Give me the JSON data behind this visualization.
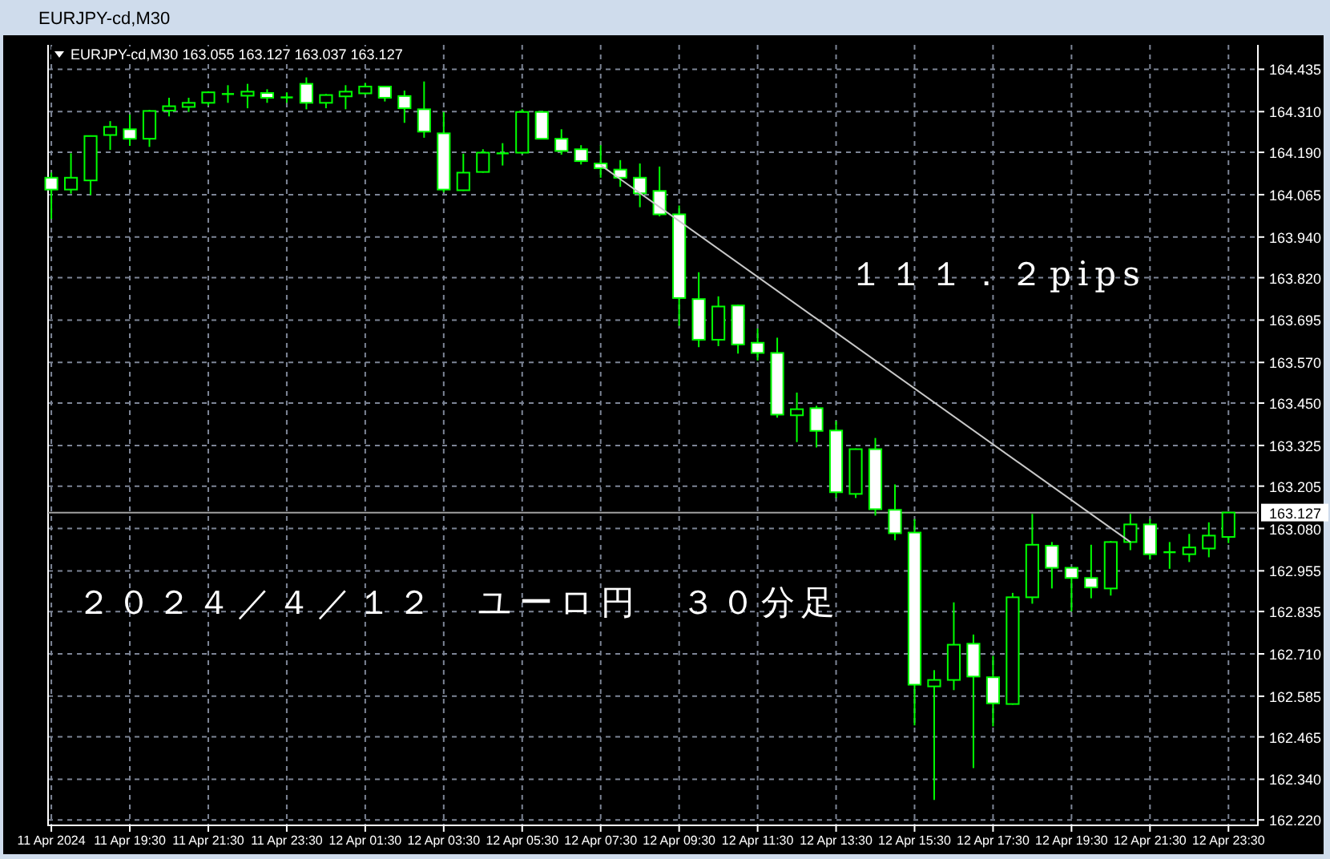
{
  "chart_data": {
    "type": "candlestick",
    "title": "EURJPY-cd,M30",
    "subtitle": "EURJPY-cd,M30 163.055 163.127 163.037 163.127",
    "color": "#00ff00",
    "x": [
      "2024-04-11T17:30",
      "2024-04-11T18:00",
      "2024-04-11T18:30",
      "2024-04-11T19:00",
      "2024-04-11T19:30",
      "2024-04-11T20:00",
      "2024-04-11T20:30",
      "2024-04-11T21:00",
      "2024-04-11T21:30",
      "2024-04-11T22:00",
      "2024-04-11T22:30",
      "2024-04-11T23:00",
      "2024-04-11T23:30",
      "2024-04-12T00:00",
      "2024-04-12T00:30",
      "2024-04-12T01:00",
      "2024-04-12T01:30",
      "2024-04-12T02:00",
      "2024-04-12T02:30",
      "2024-04-12T03:00",
      "2024-04-12T03:30",
      "2024-04-12T04:00",
      "2024-04-12T04:30",
      "2024-04-12T05:00",
      "2024-04-12T05:30",
      "2024-04-12T06:00",
      "2024-04-12T06:30",
      "2024-04-12T07:00",
      "2024-04-12T07:30",
      "2024-04-12T08:00",
      "2024-04-12T08:30",
      "2024-04-12T09:00",
      "2024-04-12T09:30",
      "2024-04-12T10:00",
      "2024-04-12T10:30",
      "2024-04-12T11:00",
      "2024-04-12T11:30",
      "2024-04-12T12:00",
      "2024-04-12T12:30",
      "2024-04-12T13:00",
      "2024-04-12T13:30",
      "2024-04-12T14:00",
      "2024-04-12T14:30",
      "2024-04-12T15:00",
      "2024-04-12T15:30",
      "2024-04-12T16:00",
      "2024-04-12T16:30",
      "2024-04-12T17:00",
      "2024-04-12T17:30",
      "2024-04-12T18:00",
      "2024-04-12T18:30",
      "2024-04-12T19:00",
      "2024-04-12T19:30",
      "2024-04-12T20:00",
      "2024-04-12T20:30",
      "2024-04-12T21:00",
      "2024-04-12T21:30",
      "2024-04-12T22:00",
      "2024-04-12T22:30",
      "2024-04-12T23:00",
      "2024-04-12T23:30"
    ],
    "ohlc": [
      [
        164.115,
        164.13,
        163.993,
        164.08
      ],
      [
        164.08,
        164.187,
        164.068,
        164.115
      ],
      [
        164.107,
        164.24,
        164.064,
        164.238
      ],
      [
        164.241,
        164.282,
        164.197,
        164.265
      ],
      [
        164.258,
        164.301,
        164.209,
        164.23
      ],
      [
        164.23,
        164.315,
        164.206,
        164.312
      ],
      [
        164.313,
        164.351,
        164.296,
        164.326
      ],
      [
        164.324,
        164.351,
        164.309,
        164.336
      ],
      [
        164.336,
        164.37,
        164.328,
        164.367
      ],
      [
        164.36,
        164.388,
        164.336,
        164.362
      ],
      [
        164.357,
        164.392,
        164.32,
        164.369
      ],
      [
        164.365,
        164.376,
        164.336,
        164.351
      ],
      [
        164.35,
        164.367,
        164.336,
        164.352
      ],
      [
        164.392,
        164.411,
        164.317,
        164.336
      ],
      [
        164.336,
        164.362,
        164.32,
        164.359
      ],
      [
        164.355,
        164.388,
        164.317,
        164.369
      ],
      [
        164.364,
        164.395,
        164.36,
        164.384
      ],
      [
        164.384,
        164.386,
        164.34,
        164.351
      ],
      [
        164.356,
        164.372,
        164.277,
        164.32
      ],
      [
        164.317,
        164.399,
        164.233,
        164.251
      ],
      [
        164.246,
        164.309,
        164.072,
        164.08
      ],
      [
        164.078,
        164.186,
        164.076,
        164.13
      ],
      [
        164.132,
        164.199,
        164.13,
        164.189
      ],
      [
        164.185,
        164.217,
        164.151,
        164.187
      ],
      [
        164.189,
        164.317,
        164.185,
        164.309
      ],
      [
        164.309,
        164.312,
        164.228,
        164.23
      ],
      [
        164.23,
        164.258,
        164.183,
        164.194
      ],
      [
        164.199,
        164.211,
        164.154,
        164.164
      ],
      [
        164.157,
        164.211,
        164.115,
        164.143
      ],
      [
        164.139,
        164.167,
        164.088,
        164.115
      ],
      [
        164.115,
        164.157,
        164.028,
        164.069
      ],
      [
        164.076,
        164.148,
        164.001,
        164.007
      ],
      [
        164.007,
        164.033,
        163.678,
        163.76
      ],
      [
        163.757,
        163.836,
        163.615,
        163.637
      ],
      [
        163.637,
        163.765,
        163.618,
        163.735
      ],
      [
        163.738,
        163.74,
        163.596,
        163.623
      ],
      [
        163.628,
        163.67,
        163.576,
        163.598
      ],
      [
        163.598,
        163.643,
        163.407,
        163.416
      ],
      [
        163.414,
        163.481,
        163.335,
        163.432
      ],
      [
        163.435,
        163.442,
        163.319,
        163.368
      ],
      [
        163.369,
        163.397,
        163.17,
        163.187
      ],
      [
        163.182,
        163.316,
        163.17,
        163.314
      ],
      [
        163.314,
        163.347,
        163.118,
        163.137
      ],
      [
        163.135,
        163.21,
        163.045,
        163.066
      ],
      [
        163.068,
        163.108,
        162.499,
        162.619
      ],
      [
        162.614,
        162.662,
        162.279,
        162.633
      ],
      [
        162.633,
        162.862,
        162.603,
        162.737
      ],
      [
        162.74,
        162.767,
        162.373,
        162.643
      ],
      [
        162.641,
        162.704,
        162.496,
        162.564
      ],
      [
        162.562,
        162.89,
        162.56,
        162.877
      ],
      [
        162.877,
        163.123,
        162.858,
        163.032
      ],
      [
        163.029,
        163.04,
        162.903,
        162.964
      ],
      [
        162.964,
        162.966,
        162.835,
        162.934
      ],
      [
        162.934,
        163.032,
        162.874,
        162.906
      ],
      [
        162.903,
        163.043,
        162.882,
        163.04
      ],
      [
        163.04,
        163.123,
        163.016,
        163.092
      ],
      [
        163.092,
        163.108,
        162.988,
        163.004
      ],
      [
        163.008,
        163.04,
        162.961,
        163.01
      ],
      [
        163.004,
        163.064,
        162.981,
        163.024
      ],
      [
        163.021,
        163.098,
        162.995,
        163.059
      ],
      [
        163.055,
        163.127,
        163.037,
        163.127
      ]
    ],
    "series": [
      {
        "type": "line",
        "color": "#c8c8c8",
        "x": [
          "2024-04-12T07:30",
          "2024-04-12T21:00"
        ],
        "values": [
          164.152,
          163.04
        ]
      }
    ],
    "xlim": [
      "2024-04-11T17:25",
      "2024-04-13T00:15"
    ],
    "xticks": [
      {
        "value": "2024-04-11T17:30",
        "label": "11 Apr 2024"
      },
      {
        "value": "2024-04-11T19:30",
        "label": "11 Apr 19:30"
      },
      {
        "value": "2024-04-11T21:30",
        "label": "11 Apr 21:30"
      },
      {
        "value": "2024-04-11T23:30",
        "label": "11 Apr 23:30"
      },
      {
        "value": "2024-04-12T01:30",
        "label": "12 Apr 01:30"
      },
      {
        "value": "2024-04-12T03:30",
        "label": "12 Apr 03:30"
      },
      {
        "value": "2024-04-12T05:30",
        "label": "12 Apr 05:30"
      },
      {
        "value": "2024-04-12T07:30",
        "label": "12 Apr 07:30"
      },
      {
        "value": "2024-04-12T09:30",
        "label": "12 Apr 09:30"
      },
      {
        "value": "2024-04-12T11:30",
        "label": "12 Apr 11:30"
      },
      {
        "value": "2024-04-12T13:30",
        "label": "12 Apr 13:30"
      },
      {
        "value": "2024-04-12T15:30",
        "label": "12 Apr 15:30"
      },
      {
        "value": "2024-04-12T17:30",
        "label": "12 Apr 17:30"
      },
      {
        "value": "2024-04-12T19:30",
        "label": "12 Apr 19:30"
      },
      {
        "value": "2024-04-12T21:30",
        "label": "12 Apr 21:30"
      },
      {
        "value": "2024-04-12T23:30",
        "label": "12 Apr 23:30"
      }
    ],
    "ylim": [
      162.204,
      164.507
    ],
    "yticks": [
      {
        "value": 164.435,
        "label": "164.435"
      },
      {
        "value": 164.31,
        "label": "164.310"
      },
      {
        "value": 164.19,
        "label": "164.190"
      },
      {
        "value": 164.065,
        "label": "164.065"
      },
      {
        "value": 163.94,
        "label": "163.940"
      },
      {
        "value": 163.82,
        "label": "163.820"
      },
      {
        "value": 163.695,
        "label": "163.695"
      },
      {
        "value": 163.57,
        "label": "163.570"
      },
      {
        "value": 163.45,
        "label": "163.450"
      },
      {
        "value": 163.325,
        "label": "163.325"
      },
      {
        "value": 163.205,
        "label": "163.205"
      },
      {
        "value": 163.08,
        "label": "163.080"
      },
      {
        "value": 162.955,
        "label": "162.955"
      },
      {
        "value": 162.835,
        "label": "162.835"
      },
      {
        "value": 162.71,
        "label": "162.710"
      },
      {
        "value": 162.585,
        "label": "162.585"
      },
      {
        "value": 162.465,
        "label": "162.465"
      },
      {
        "value": 162.34,
        "label": "162.340"
      },
      {
        "value": 162.22,
        "label": "162.220"
      }
    ],
    "grid": true,
    "ref_lines": [
      {
        "axis": "y",
        "value": 163.127,
        "label": "163.127",
        "color": "#a0a0a0"
      }
    ],
    "annotations": [
      "１１１．２pips",
      "２０２４／４／１２　ユーロ円　３０分足"
    ]
  }
}
